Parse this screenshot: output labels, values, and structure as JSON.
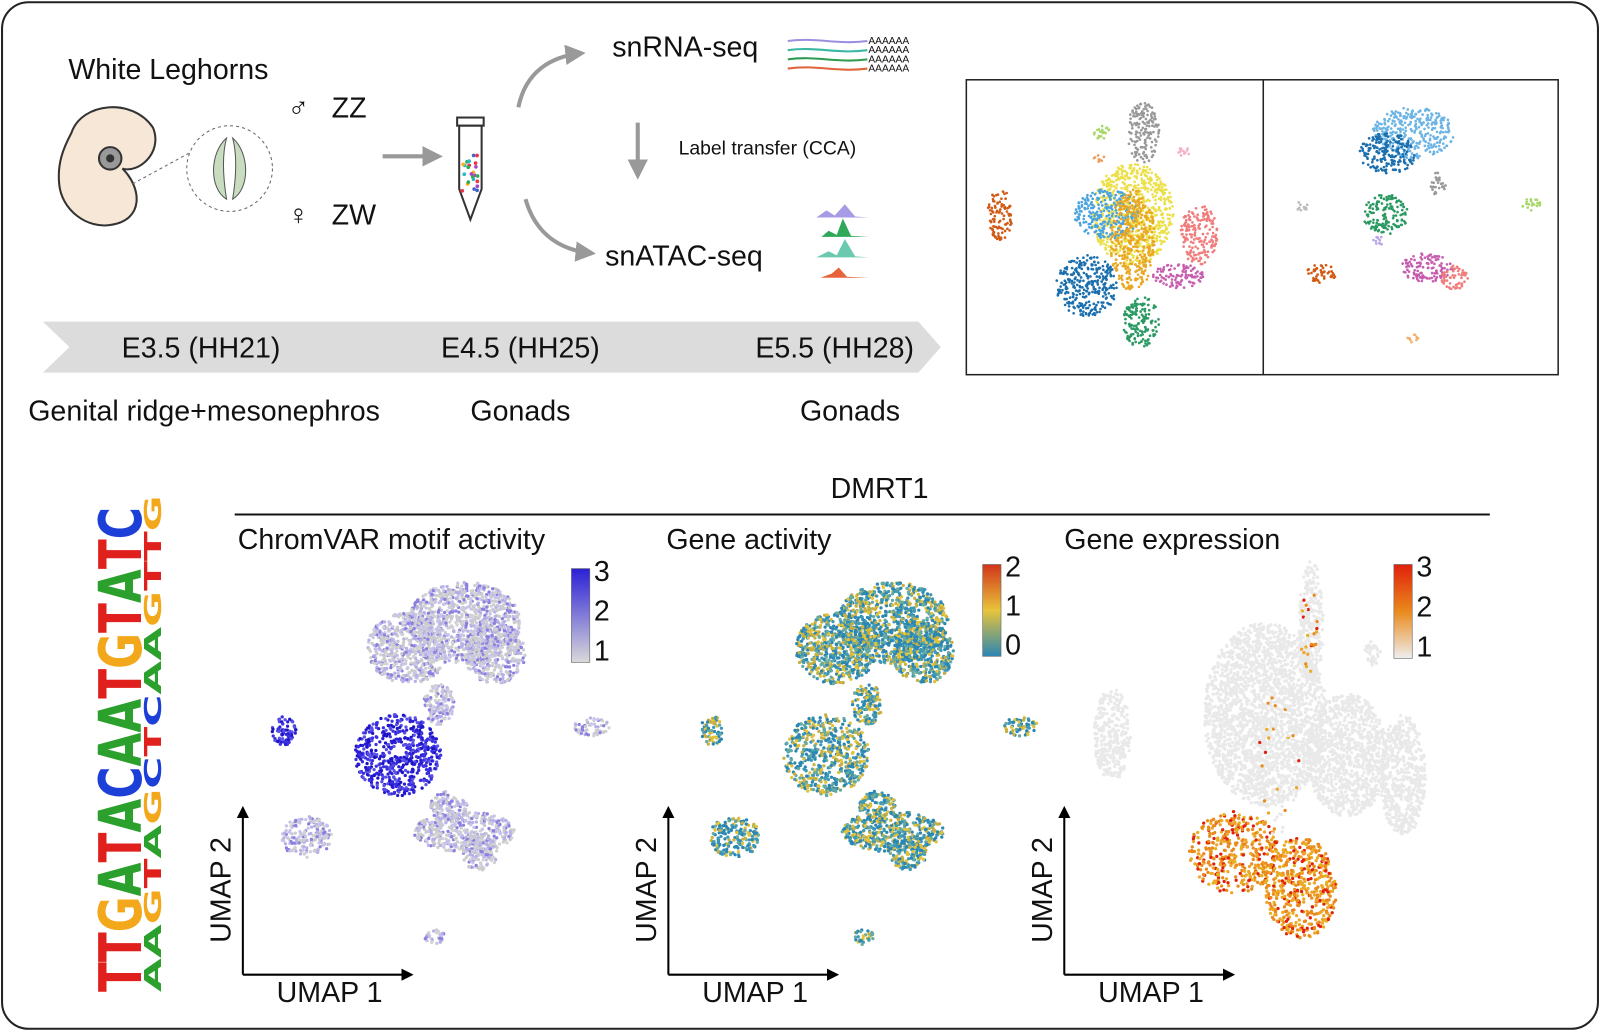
{
  "workflow": {
    "organism": "White Leghorns",
    "male_symbol": "♂",
    "male_genotype": "ZZ",
    "female_symbol": "♀",
    "female_genotype": "ZW",
    "rna": "snRNA-seq",
    "poly_a": "AAAAAA",
    "transfer": "Label transfer (CCA)",
    "atac": "snATAC-seq"
  },
  "timeline": {
    "stages": [
      "E3.5 (HH21)",
      "E4.5 (HH25)",
      "E5.5 (HH28)"
    ],
    "tissues": [
      "Genital ridge+mesonephros",
      "Gonads",
      "Gonads"
    ]
  },
  "motif": {
    "gene": "DMRT1",
    "logo": [
      "TTGATACAATGTATC",
      "AAGTAGCTCAAGTTG"
    ]
  },
  "panels": [
    {
      "title": "ChromVAR motif activity",
      "x_label": "UMAP 1",
      "y_label": "UMAP 2",
      "colorbar_ticks": [
        3,
        2,
        1
      ]
    },
    {
      "title": "Gene activity",
      "x_label": "UMAP 1",
      "y_label": "UMAP 2",
      "colorbar_ticks": [
        2,
        1,
        0
      ]
    },
    {
      "title": "Gene expression",
      "x_label": "UMAP 1",
      "y_label": "UMAP 2",
      "colorbar_ticks": [
        3,
        2,
        1
      ]
    }
  ]
}
